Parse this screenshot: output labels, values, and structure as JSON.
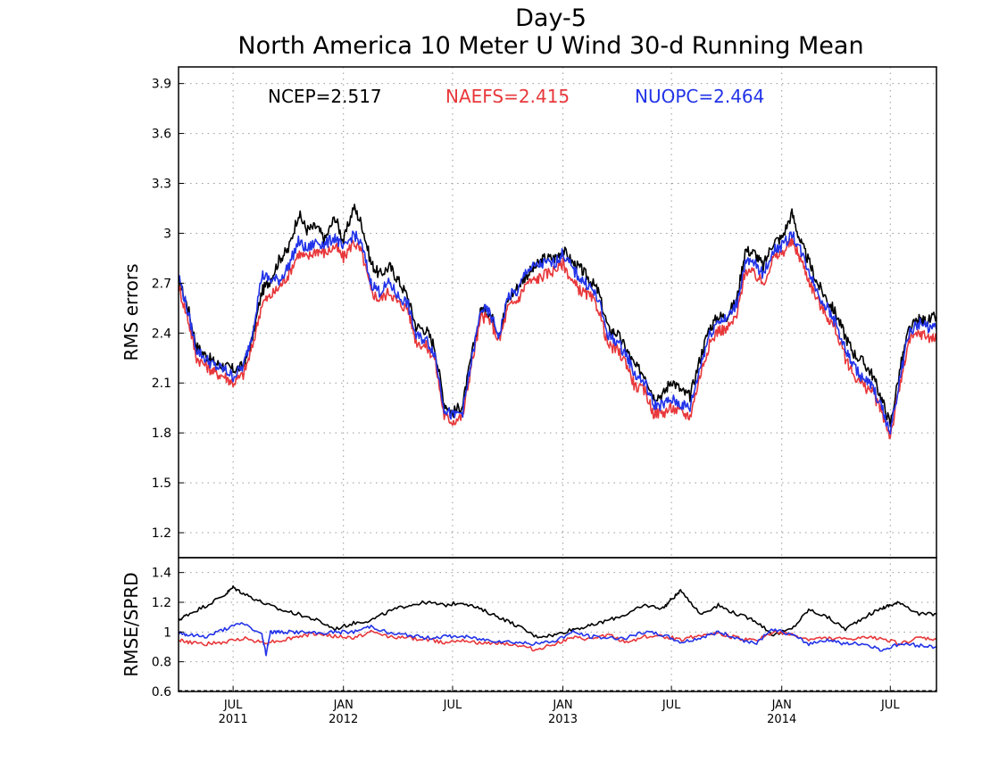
{
  "colors": {
    "ncep": "#000000",
    "naefs": "#e8383b",
    "nuopc": "#2233e8",
    "grid": "#999999"
  },
  "chart_data": [
    {
      "type": "line",
      "title": "Day-5",
      "subtitle": "North America 10 Meter U Wind 30-d Running Mean",
      "xlabel": "",
      "ylabel": "RMS errors",
      "ylim": [
        1.05,
        4.0
      ],
      "yticks": [
        "1.2",
        "1.5",
        "1.8",
        "2.1",
        "2.4",
        "2.7",
        "3",
        "3.3",
        "3.6",
        "3.9"
      ],
      "xlim": [
        "2011-04-15",
        "2014-09-30"
      ],
      "xticks": [
        {
          "date": "2011-07-15",
          "label": "JUL",
          "year": "2011"
        },
        {
          "date": "2012-01-15",
          "label": "JAN",
          "year": "2012"
        },
        {
          "date": "2012-07-15",
          "label": "JUL",
          "year": ""
        },
        {
          "date": "2013-01-15",
          "label": "JAN",
          "year": "2013"
        },
        {
          "date": "2013-07-15",
          "label": "JUL",
          "year": ""
        },
        {
          "date": "2014-01-15",
          "label": "JAN",
          "year": "2014"
        },
        {
          "date": "2014-07-15",
          "label": "JUL",
          "year": ""
        }
      ],
      "grid": true,
      "legend": [
        {
          "series": "NCEP",
          "text": "NCEP=2.517"
        },
        {
          "series": "NAEFS",
          "text": "NAEFS=2.415"
        },
        {
          "series": "NUOPC",
          "text": "NUOPC=2.464"
        }
      ],
      "series": [
        {
          "name": "NCEP",
          "color": "#000000",
          "x": [
            "2011-04-15",
            "2011-05-01",
            "2011-05-15",
            "2011-06-01",
            "2011-06-15",
            "2011-07-01",
            "2011-07-15",
            "2011-08-01",
            "2011-08-15",
            "2011-09-01",
            "2011-09-15",
            "2011-10-01",
            "2011-10-15",
            "2011-11-01",
            "2011-11-15",
            "2011-12-01",
            "2011-12-15",
            "2012-01-01",
            "2012-01-15",
            "2012-02-01",
            "2012-02-15",
            "2012-03-01",
            "2012-03-15",
            "2012-04-01",
            "2012-04-15",
            "2012-05-01",
            "2012-05-15",
            "2012-06-01",
            "2012-06-15",
            "2012-07-01",
            "2012-07-15",
            "2012-08-01",
            "2012-08-15",
            "2012-09-01",
            "2012-09-15",
            "2012-10-01",
            "2012-10-15",
            "2012-11-01",
            "2012-11-15",
            "2012-12-01",
            "2012-12-15",
            "2013-01-01",
            "2013-01-15",
            "2013-02-01",
            "2013-02-15",
            "2013-03-01",
            "2013-03-15",
            "2013-04-01",
            "2013-04-15",
            "2013-05-01",
            "2013-05-15",
            "2013-06-01",
            "2013-06-15",
            "2013-07-01",
            "2013-07-15",
            "2013-08-01",
            "2013-08-15",
            "2013-09-01",
            "2013-09-15",
            "2013-10-01",
            "2013-10-15",
            "2013-11-01",
            "2013-11-15",
            "2013-12-01",
            "2013-12-15",
            "2014-01-01",
            "2014-01-15",
            "2014-02-01",
            "2014-02-15",
            "2014-03-01",
            "2014-03-15",
            "2014-04-01",
            "2014-04-15",
            "2014-05-01",
            "2014-05-15",
            "2014-06-01",
            "2014-06-15",
            "2014-07-01",
            "2014-07-15",
            "2014-08-01",
            "2014-08-15",
            "2014-09-01",
            "2014-09-15",
            "2014-09-30"
          ],
          "y": [
            2.72,
            2.55,
            2.32,
            2.26,
            2.22,
            2.2,
            2.18,
            2.2,
            2.35,
            2.65,
            2.72,
            2.85,
            2.9,
            3.12,
            3.02,
            3.04,
            2.96,
            3.1,
            2.95,
            3.16,
            3.05,
            2.82,
            2.75,
            2.8,
            2.72,
            2.62,
            2.44,
            2.42,
            2.32,
            1.98,
            1.92,
            1.97,
            2.25,
            2.55,
            2.52,
            2.4,
            2.6,
            2.68,
            2.75,
            2.8,
            2.85,
            2.85,
            2.9,
            2.82,
            2.78,
            2.72,
            2.65,
            2.42,
            2.4,
            2.3,
            2.2,
            2.15,
            2.02,
            2.03,
            2.12,
            2.05,
            2.02,
            2.25,
            2.42,
            2.5,
            2.5,
            2.6,
            2.9,
            2.88,
            2.8,
            2.95,
            2.97,
            3.12,
            2.95,
            2.83,
            2.7,
            2.6,
            2.52,
            2.38,
            2.28,
            2.22,
            2.15,
            2.0,
            1.85,
            2.2,
            2.42,
            2.48,
            2.47,
            2.5
          ]
        },
        {
          "name": "NAEFS",
          "color": "#e8383b",
          "x": [
            "2011-04-15",
            "2011-05-01",
            "2011-05-15",
            "2011-06-01",
            "2011-06-15",
            "2011-07-01",
            "2011-07-15",
            "2011-08-01",
            "2011-08-15",
            "2011-09-01",
            "2011-09-15",
            "2011-10-01",
            "2011-10-15",
            "2011-11-01",
            "2011-11-15",
            "2011-12-01",
            "2011-12-15",
            "2012-01-01",
            "2012-01-15",
            "2012-02-01",
            "2012-02-15",
            "2012-03-01",
            "2012-03-15",
            "2012-04-01",
            "2012-04-15",
            "2012-05-01",
            "2012-05-15",
            "2012-06-01",
            "2012-06-15",
            "2012-07-01",
            "2012-07-15",
            "2012-08-01",
            "2012-08-15",
            "2012-09-01",
            "2012-09-15",
            "2012-10-01",
            "2012-10-15",
            "2012-11-01",
            "2012-11-15",
            "2012-12-01",
            "2012-12-15",
            "2013-01-01",
            "2013-01-15",
            "2013-02-01",
            "2013-02-15",
            "2013-03-01",
            "2013-03-15",
            "2013-04-01",
            "2013-04-15",
            "2013-05-01",
            "2013-05-15",
            "2013-06-01",
            "2013-06-15",
            "2013-07-01",
            "2013-07-15",
            "2013-08-01",
            "2013-08-15",
            "2013-09-01",
            "2013-09-15",
            "2013-10-01",
            "2013-10-15",
            "2013-11-01",
            "2013-11-15",
            "2013-12-01",
            "2013-12-15",
            "2014-01-01",
            "2014-01-15",
            "2014-02-01",
            "2014-02-15",
            "2014-03-01",
            "2014-03-15",
            "2014-04-01",
            "2014-04-15",
            "2014-05-01",
            "2014-05-15",
            "2014-06-01",
            "2014-06-15",
            "2014-07-01",
            "2014-07-15",
            "2014-08-01",
            "2014-08-15",
            "2014-09-01",
            "2014-09-15",
            "2014-09-30"
          ],
          "y": [
            2.68,
            2.48,
            2.25,
            2.2,
            2.16,
            2.14,
            2.1,
            2.15,
            2.3,
            2.58,
            2.62,
            2.68,
            2.75,
            2.88,
            2.85,
            2.9,
            2.88,
            2.92,
            2.85,
            2.95,
            2.88,
            2.65,
            2.6,
            2.65,
            2.58,
            2.55,
            2.35,
            2.32,
            2.25,
            1.9,
            1.87,
            1.9,
            2.2,
            2.5,
            2.48,
            2.35,
            2.55,
            2.6,
            2.7,
            2.72,
            2.75,
            2.78,
            2.82,
            2.7,
            2.65,
            2.62,
            2.55,
            2.32,
            2.3,
            2.22,
            2.08,
            2.05,
            1.92,
            1.92,
            1.95,
            1.92,
            1.9,
            2.15,
            2.32,
            2.42,
            2.42,
            2.5,
            2.78,
            2.75,
            2.7,
            2.85,
            2.88,
            2.95,
            2.85,
            2.72,
            2.6,
            2.5,
            2.42,
            2.25,
            2.15,
            2.08,
            2.05,
            1.92,
            1.78,
            2.1,
            2.35,
            2.4,
            2.38,
            2.36
          ]
        },
        {
          "name": "NUOPC",
          "color": "#2233e8",
          "x": [
            "2011-04-15",
            "2011-05-01",
            "2011-05-15",
            "2011-06-01",
            "2011-06-15",
            "2011-07-01",
            "2011-07-15",
            "2011-08-01",
            "2011-08-15",
            "2011-09-01",
            "2011-09-15",
            "2011-10-01",
            "2011-10-15",
            "2011-11-01",
            "2011-11-15",
            "2011-12-01",
            "2011-12-15",
            "2012-01-01",
            "2012-01-15",
            "2012-02-01",
            "2012-02-15",
            "2012-03-01",
            "2012-03-15",
            "2012-04-01",
            "2012-04-15",
            "2012-05-01",
            "2012-05-15",
            "2012-06-01",
            "2012-06-15",
            "2012-07-01",
            "2012-07-15",
            "2012-08-01",
            "2012-08-15",
            "2012-09-01",
            "2012-09-15",
            "2012-10-01",
            "2012-10-15",
            "2012-11-01",
            "2012-11-15",
            "2012-12-01",
            "2012-12-15",
            "2013-01-01",
            "2013-01-15",
            "2013-02-01",
            "2013-02-15",
            "2013-03-01",
            "2013-03-15",
            "2013-04-01",
            "2013-04-15",
            "2013-05-01",
            "2013-05-15",
            "2013-06-01",
            "2013-06-15",
            "2013-07-01",
            "2013-07-15",
            "2013-08-01",
            "2013-08-15",
            "2013-09-01",
            "2013-09-15",
            "2013-10-01",
            "2013-10-15",
            "2013-11-01",
            "2013-11-15",
            "2013-12-01",
            "2013-12-15",
            "2014-01-01",
            "2014-01-15",
            "2014-02-01",
            "2014-02-15",
            "2014-03-01",
            "2014-03-15",
            "2014-04-01",
            "2014-04-15",
            "2014-05-01",
            "2014-05-15",
            "2014-06-01",
            "2014-06-15",
            "2014-07-01",
            "2014-07-15",
            "2014-08-01",
            "2014-08-15",
            "2014-09-01",
            "2014-09-15",
            "2014-09-30"
          ],
          "y": [
            2.75,
            2.52,
            2.3,
            2.24,
            2.2,
            2.18,
            2.14,
            2.2,
            2.38,
            2.75,
            2.72,
            2.72,
            2.8,
            2.95,
            2.9,
            2.95,
            2.93,
            2.98,
            2.9,
            3.0,
            2.92,
            2.7,
            2.65,
            2.7,
            2.62,
            2.58,
            2.38,
            2.36,
            2.28,
            1.95,
            1.9,
            1.93,
            2.22,
            2.55,
            2.52,
            2.38,
            2.62,
            2.65,
            2.78,
            2.8,
            2.82,
            2.82,
            2.88,
            2.78,
            2.72,
            2.68,
            2.6,
            2.38,
            2.35,
            2.27,
            2.15,
            2.1,
            1.97,
            1.97,
            2.0,
            1.97,
            1.95,
            2.2,
            2.38,
            2.48,
            2.48,
            2.58,
            2.82,
            2.82,
            2.75,
            2.9,
            2.92,
            3.0,
            2.9,
            2.78,
            2.65,
            2.55,
            2.46,
            2.3,
            2.2,
            2.12,
            2.08,
            1.95,
            1.8,
            2.15,
            2.4,
            2.46,
            2.44,
            2.42
          ]
        }
      ]
    },
    {
      "type": "line",
      "title": "",
      "xlabel": "",
      "ylabel": "RMSE/SPRD",
      "ylim": [
        0.6,
        1.5
      ],
      "yticks": [
        "0.6",
        "0.8",
        "1",
        "1.2",
        "1.4"
      ],
      "xlim": [
        "2011-04-15",
        "2014-09-30"
      ],
      "grid": true,
      "series": [
        {
          "name": "NCEP",
          "color": "#000000",
          "x": [
            "2011-04-15",
            "2011-05-01",
            "2011-06-01",
            "2011-07-01",
            "2011-07-15",
            "2011-08-01",
            "2011-09-01",
            "2011-10-01",
            "2011-11-01",
            "2011-12-01",
            "2012-01-01",
            "2012-02-01",
            "2012-03-01",
            "2012-04-01",
            "2012-05-01",
            "2012-06-01",
            "2012-07-01",
            "2012-08-01",
            "2012-09-01",
            "2012-10-01",
            "2012-11-01",
            "2012-12-01",
            "2013-01-01",
            "2013-02-01",
            "2013-03-01",
            "2013-04-01",
            "2013-05-01",
            "2013-06-01",
            "2013-07-01",
            "2013-07-15",
            "2013-08-01",
            "2013-09-01",
            "2013-10-01",
            "2013-11-01",
            "2013-12-01",
            "2014-01-01",
            "2014-02-01",
            "2014-03-01",
            "2014-04-01",
            "2014-05-01",
            "2014-06-01",
            "2014-07-01",
            "2014-07-15",
            "2014-08-01",
            "2014-09-01",
            "2014-09-30"
          ],
          "y": [
            1.08,
            1.12,
            1.18,
            1.25,
            1.3,
            1.26,
            1.2,
            1.15,
            1.12,
            1.08,
            1.02,
            1.06,
            1.08,
            1.14,
            1.18,
            1.2,
            1.18,
            1.2,
            1.15,
            1.1,
            1.04,
            0.97,
            0.98,
            1.02,
            1.04,
            1.08,
            1.12,
            1.18,
            1.16,
            1.22,
            1.28,
            1.12,
            1.18,
            1.12,
            1.08,
            0.98,
            1.02,
            1.15,
            1.1,
            1.02,
            1.1,
            1.16,
            1.18,
            1.2,
            1.12,
            1.12
          ]
        },
        {
          "name": "NAEFS",
          "color": "#e8383b",
          "x": [
            "2011-04-15",
            "2011-05-01",
            "2011-06-01",
            "2011-07-01",
            "2011-08-01",
            "2011-09-01",
            "2011-10-01",
            "2011-11-01",
            "2011-12-01",
            "2012-01-01",
            "2012-02-01",
            "2012-03-01",
            "2012-04-01",
            "2012-05-01",
            "2012-06-01",
            "2012-07-01",
            "2012-08-01",
            "2012-09-01",
            "2012-10-01",
            "2012-11-01",
            "2012-12-01",
            "2013-01-01",
            "2013-02-01",
            "2013-03-01",
            "2013-04-01",
            "2013-05-01",
            "2013-06-01",
            "2013-07-01",
            "2013-08-01",
            "2013-09-01",
            "2013-10-01",
            "2013-11-01",
            "2013-12-01",
            "2014-01-01",
            "2014-02-01",
            "2014-03-01",
            "2014-04-01",
            "2014-05-01",
            "2014-06-01",
            "2014-07-01",
            "2014-08-01",
            "2014-09-01",
            "2014-09-30"
          ],
          "y": [
            0.95,
            0.93,
            0.92,
            0.93,
            0.96,
            0.93,
            0.94,
            0.97,
            0.99,
            0.97,
            0.96,
            1.0,
            0.97,
            0.96,
            0.95,
            0.93,
            0.95,
            0.92,
            0.93,
            0.91,
            0.88,
            0.92,
            0.96,
            0.95,
            0.98,
            0.93,
            0.97,
            0.97,
            0.95,
            0.98,
            0.99,
            0.96,
            0.94,
            1.0,
            0.98,
            0.95,
            0.96,
            0.95,
            0.96,
            0.96,
            0.92,
            0.96,
            0.95
          ]
        },
        {
          "name": "NUOPC",
          "color": "#2233e8",
          "x": [
            "2011-04-15",
            "2011-05-01",
            "2011-06-01",
            "2011-07-01",
            "2011-08-01",
            "2011-09-01",
            "2011-09-08",
            "2011-09-15",
            "2011-10-01",
            "2011-11-01",
            "2011-12-01",
            "2012-01-01",
            "2012-02-01",
            "2012-03-01",
            "2012-04-01",
            "2012-05-01",
            "2012-06-01",
            "2012-07-01",
            "2012-08-01",
            "2012-09-01",
            "2012-10-01",
            "2012-11-01",
            "2012-12-01",
            "2013-01-01",
            "2013-02-01",
            "2013-03-01",
            "2013-04-01",
            "2013-05-01",
            "2013-06-01",
            "2013-07-01",
            "2013-08-01",
            "2013-09-01",
            "2013-10-01",
            "2013-11-01",
            "2013-12-01",
            "2014-01-01",
            "2014-02-01",
            "2014-03-01",
            "2014-04-01",
            "2014-05-01",
            "2014-06-01",
            "2014-07-01",
            "2014-08-01",
            "2014-09-01",
            "2014-09-30"
          ],
          "y": [
            1.0,
            0.98,
            0.97,
            1.02,
            1.06,
            0.98,
            0.85,
            1.0,
            1.0,
            1.0,
            0.99,
            1.0,
            1.0,
            1.04,
            0.99,
            0.98,
            0.96,
            0.97,
            0.97,
            0.95,
            0.94,
            0.93,
            0.92,
            0.94,
            1.0,
            0.97,
            0.96,
            0.96,
            1.0,
            0.98,
            0.93,
            0.96,
            1.0,
            0.96,
            0.92,
            1.02,
            0.98,
            0.92,
            0.95,
            0.92,
            0.92,
            0.88,
            0.92,
            0.91,
            0.9
          ]
        }
      ]
    }
  ]
}
